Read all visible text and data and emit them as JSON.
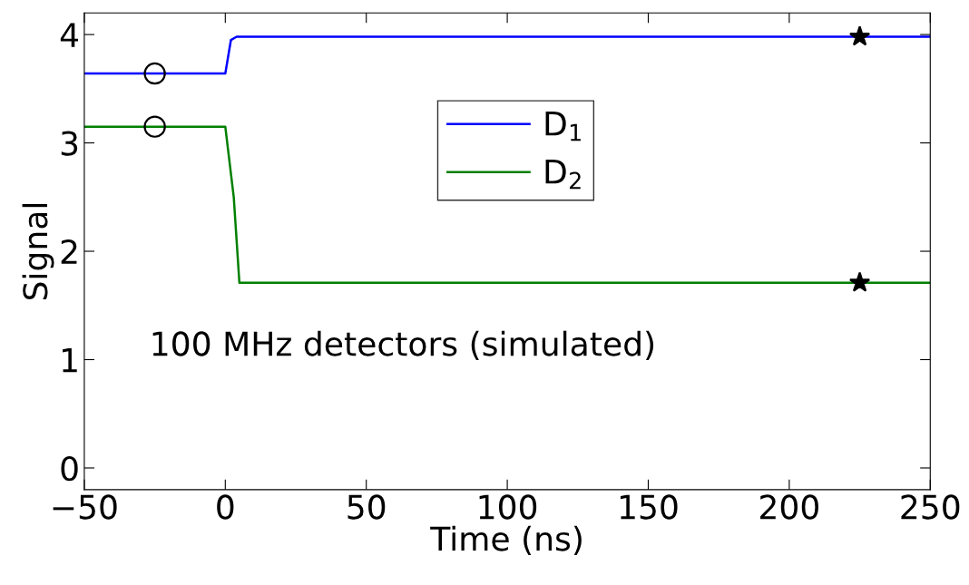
{
  "chart_data": {
    "type": "line",
    "xlabel": "Time (ns)",
    "ylabel": "Signal",
    "xlim": [
      -50,
      250
    ],
    "ylim": [
      -0.2,
      4.2
    ],
    "xticks": [
      {
        "value": -50,
        "label": "−50"
      },
      0,
      50,
      100,
      150,
      200,
      250
    ],
    "yticks": [
      0,
      1,
      2,
      3,
      4
    ],
    "grid": false,
    "legend": "top",
    "marker": "none",
    "line_style": "solid",
    "annotations": [
      "100 MHz detectors (simulated)"
    ],
    "series": [
      {
        "name": "D$_{1}$",
        "color": "#0000ff",
        "x": [
          -50,
          0,
          2,
          4,
          250
        ],
        "values": [
          3.64,
          3.64,
          3.95,
          3.98,
          3.98
        ]
      },
      {
        "name": "D$_{2}$",
        "color": "#008000",
        "x": [
          -50,
          0,
          3,
          5,
          250
        ],
        "values": [
          3.15,
          3.15,
          2.5,
          1.71,
          1.71
        ]
      },
      {
        "type": "scatter",
        "marker": "circle",
        "color": "#000000",
        "x": [
          -25,
          -25
        ],
        "values": [
          3.64,
          3.15
        ]
      },
      {
        "type": "scatter",
        "marker": "star",
        "color": "#000000",
        "x": [
          225,
          225
        ],
        "values": [
          3.98,
          1.71
        ]
      }
    ]
  }
}
